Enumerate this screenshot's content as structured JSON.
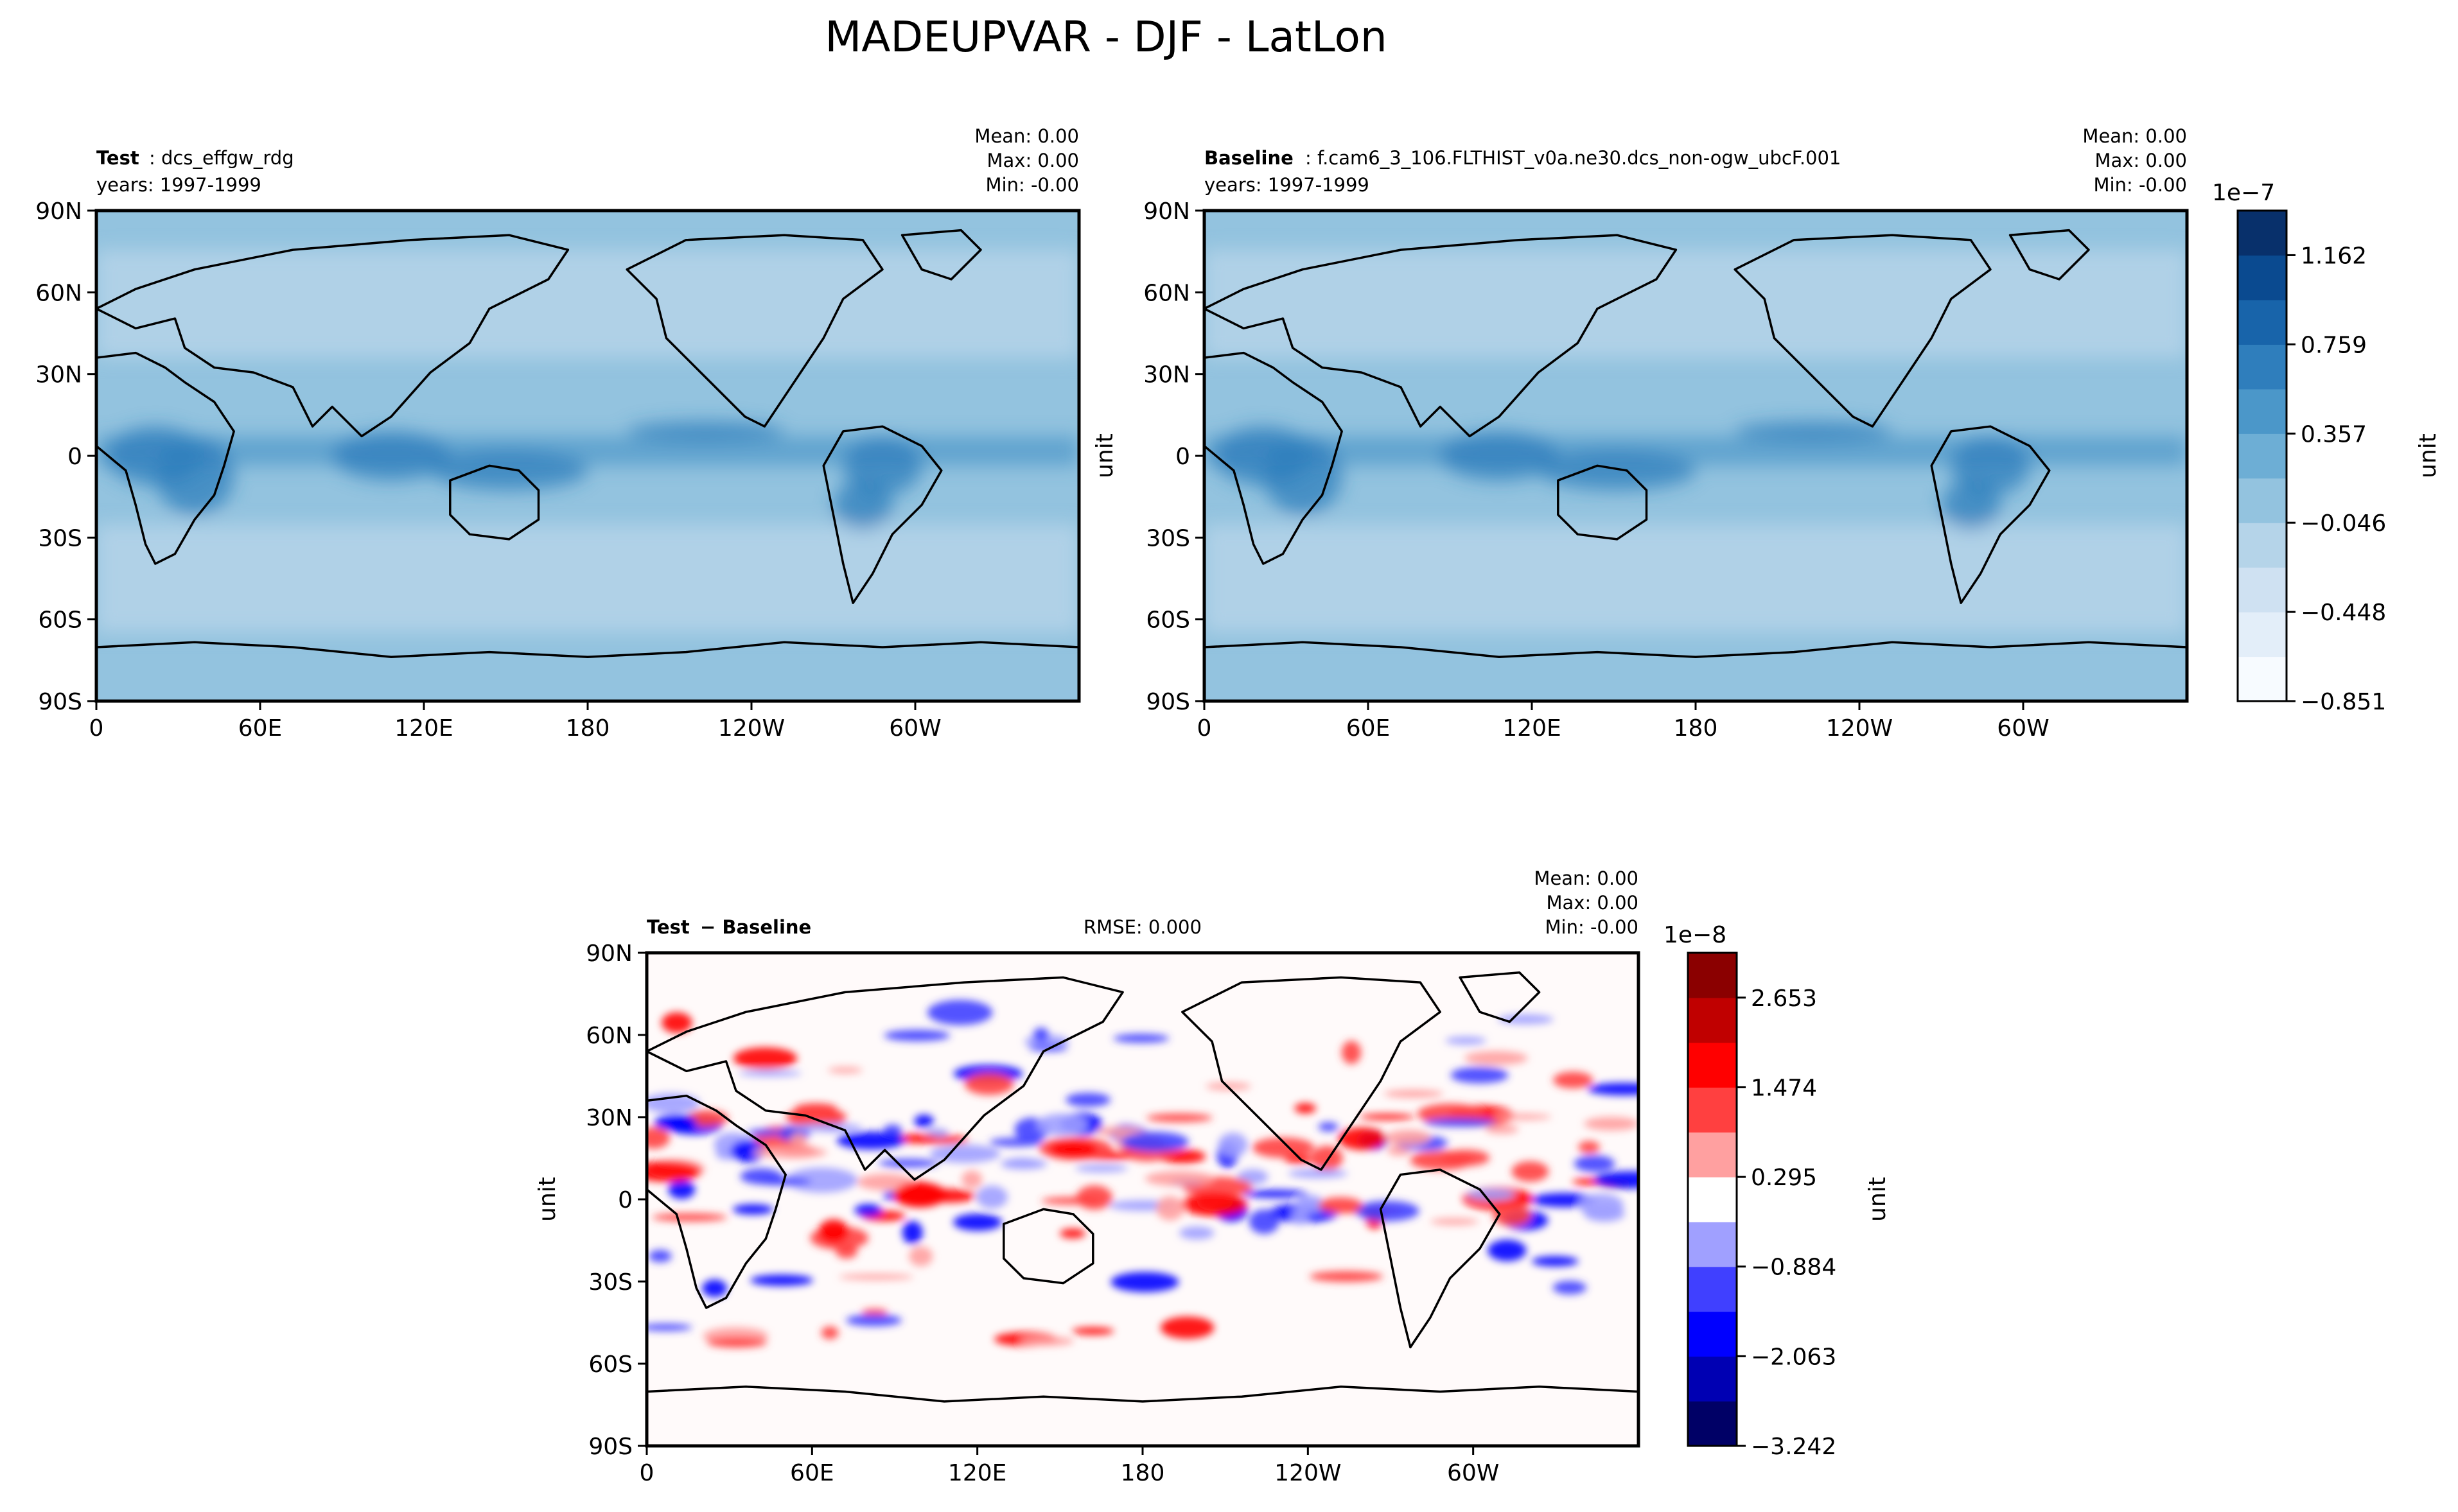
{
  "suptitle": "MADEUPVAR - DJF - LatLon",
  "chart_data": [
    {
      "type": "heatmap",
      "name": "test",
      "left_title_bold": "Test",
      "left_title_rest": ": dcs_effgw_rdg",
      "left_title_line2": "years: 1997-1999",
      "stats": [
        "Mean:  0.00",
        "Max:  0.00",
        "Min: -0.00"
      ],
      "xticks": [
        "0",
        "60E",
        "120E",
        "180",
        "120W",
        "60W"
      ],
      "yticks": [
        "90N",
        "60N",
        "30N",
        "0",
        "30S",
        "60S",
        "90S"
      ],
      "ylabel": "",
      "xlim": [
        0,
        360
      ],
      "ylim": [
        -90,
        90
      ]
    },
    {
      "type": "heatmap",
      "name": "baseline",
      "left_title_bold": "Baseline",
      "left_title_rest": ": f.cam6_3_106.FLTHIST_v0a.ne30.dcs_non-ogw_ubcF.001",
      "left_title_line2": "years: 1997-1999",
      "stats": [
        "Mean:  0.00",
        "Max:  0.00",
        "Min: -0.00"
      ],
      "xticks": [
        "0",
        "60E",
        "120E",
        "180",
        "120W",
        "60W"
      ],
      "yticks": [
        "90N",
        "60N",
        "30N",
        "0",
        "30S",
        "60S",
        "90S"
      ],
      "ylabel": "unit",
      "xlim": [
        0,
        360
      ],
      "ylim": [
        -90,
        90
      ]
    },
    {
      "type": "heatmap",
      "name": "difference",
      "left_title_bold": "Test",
      "left_title_rest": " − Baseline",
      "center_title": "RMSE: 0.000",
      "stats": [
        "Mean:  0.00",
        "Max:  0.00",
        "Min: -0.00"
      ],
      "xticks": [
        "0",
        "60E",
        "120E",
        "180",
        "120W",
        "60W"
      ],
      "yticks": [
        "90N",
        "60N",
        "30N",
        "0",
        "30S",
        "60S",
        "90S"
      ],
      "ylabel": "unit",
      "xlim": [
        0,
        360
      ],
      "ylim": [
        -90,
        90
      ]
    }
  ],
  "colorbars": [
    {
      "name": "main-colorbar",
      "exponent": "1e−7",
      "label": "unit",
      "tick_labels": [
        "1.162",
        "0.759",
        "0.357",
        "−0.046",
        "−0.448",
        "−0.851"
      ],
      "n_levels": 11,
      "colors": [
        "#f7fbff",
        "#e3eef9",
        "#cfe1f2",
        "#b5d4e9",
        "#93c3df",
        "#6daed5",
        "#4b97c9",
        "#2f7ebc",
        "#1864aa",
        "#0a4a90",
        "#08306b"
      ]
    },
    {
      "name": "diff-colorbar",
      "exponent": "1e−8",
      "label": "unit",
      "tick_labels": [
        "2.653",
        "1.474",
        "0.295",
        "−0.884",
        "−2.063",
        "−3.242"
      ],
      "n_levels": 11,
      "colors": [
        "#000066",
        "#0000b3",
        "#0000ff",
        "#4040ff",
        "#a0a0ff",
        "#ffffff",
        "#ffa0a0",
        "#ff4040",
        "#ff0000",
        "#c00000",
        "#8b0000"
      ]
    }
  ]
}
